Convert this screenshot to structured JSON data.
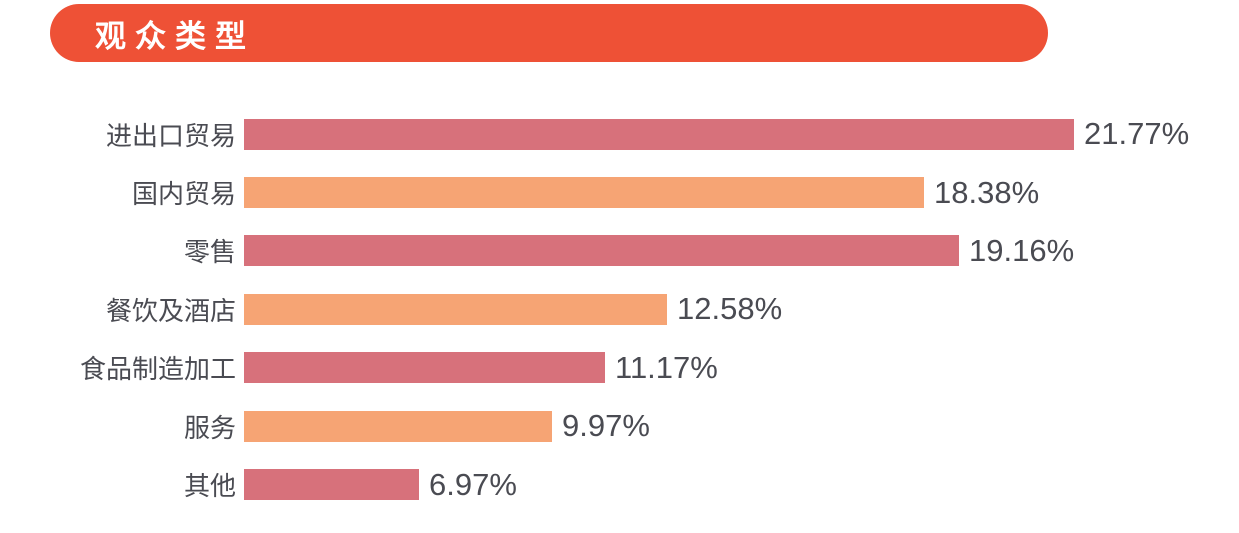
{
  "header": {
    "title": "观众类型"
  },
  "colors": {
    "accent_badge": "#EE5136",
    "bar_red": "#D7717B",
    "bar_orange": "#F6A474",
    "text": "#4A4B52",
    "background": "#FFFFFF"
  },
  "chart_data": {
    "type": "bar",
    "orientation": "horizontal",
    "title": "观众类型",
    "categories": [
      "进出口贸易",
      "国内贸易",
      "零售",
      "餐饮及酒店",
      "食品制造加工",
      "服务",
      "其他"
    ],
    "values": [
      21.77,
      18.38,
      19.16,
      12.58,
      11.17,
      9.97,
      6.97
    ],
    "value_labels": [
      "21.77%",
      "18.38%",
      "19.16%",
      "12.58%",
      "11.17%",
      "9.97%",
      "6.97%"
    ],
    "bar_color_pattern": [
      "#D7717B",
      "#F6A474"
    ],
    "xlabel": "",
    "ylabel": "",
    "grid": false,
    "legend": false,
    "data_labels_position": "right-of-bar"
  }
}
